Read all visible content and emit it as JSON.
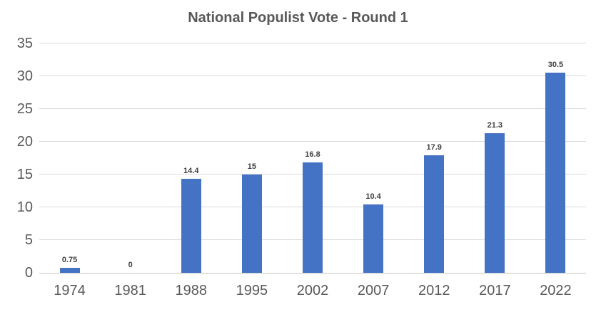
{
  "chart_data": {
    "type": "bar",
    "title": "National Populist Vote - Round 1",
    "categories": [
      "1974",
      "1981",
      "1988",
      "1995",
      "2002",
      "2007",
      "2012",
      "2017",
      "2022"
    ],
    "values": [
      0.75,
      0,
      14.4,
      15,
      16.8,
      10.4,
      17.9,
      21.3,
      30.5
    ],
    "data_labels": [
      "0.75",
      "0",
      "14.4",
      "15",
      "16.8",
      "10.4",
      "17.9",
      "21.3",
      "30.5"
    ],
    "xlabel": "",
    "ylabel": "",
    "ylim": [
      0,
      35
    ],
    "yticks": [
      0,
      5,
      10,
      15,
      20,
      25,
      30,
      35
    ],
    "grid": true,
    "legend_position": "none",
    "colors": {
      "bar": "#4472C4",
      "gridline": "#D9D9D9",
      "axis_line": "#C9C9C9",
      "axis_text": "#595959",
      "data_label": "#3F3F3F",
      "title": "#595959",
      "background": "#FFFFFF"
    }
  }
}
